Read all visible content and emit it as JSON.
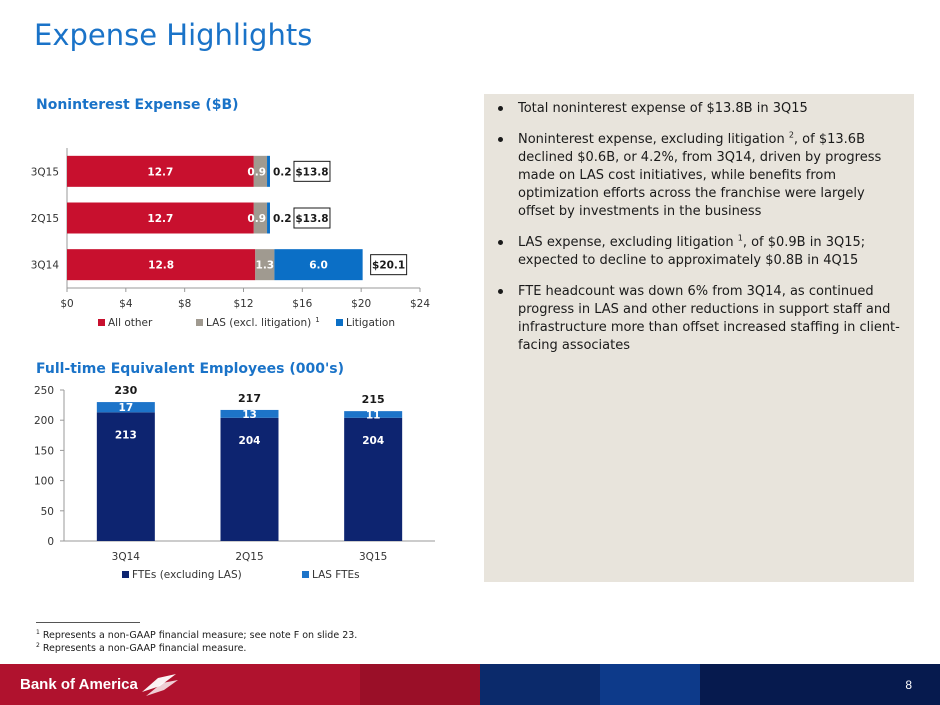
{
  "page_title": "Expense Highlights",
  "page_number": "8",
  "brand": "Bank of America",
  "colors": {
    "accent_blue": "#1a73c8",
    "red": "#c8102e",
    "gray": "#a09a90",
    "blue": "#0b6fc6",
    "navy": "#0d2470",
    "lightblue": "#1d74c9"
  },
  "chart_data": [
    {
      "type": "bar",
      "orientation": "horizontal",
      "stacked": true,
      "title": "Noninterest Expense ($B)",
      "categories": [
        "3Q14",
        "2Q15",
        "3Q15"
      ],
      "series": [
        {
          "name": "All other",
          "values": [
            12.8,
            12.7,
            12.7
          ],
          "labels": [
            "12.8",
            "12.7",
            "12.7"
          ],
          "color": "#c8102e"
        },
        {
          "name": "LAS (excl. litigation)",
          "name_sup": "1",
          "values": [
            1.3,
            0.9,
            0.9
          ],
          "labels": [
            "1.3",
            "0.9",
            "0.9"
          ],
          "color": "#a09a90"
        },
        {
          "name": "Litigation",
          "values": [
            6.0,
            0.2,
            0.2
          ],
          "labels": [
            "6.0",
            "0.2",
            "0.2"
          ],
          "color": "#0b6fc6"
        }
      ],
      "totals": [
        "$20.1",
        "$13.8",
        "$13.8"
      ],
      "xlim": [
        0,
        24
      ],
      "xticks": [
        0,
        4,
        8,
        12,
        16,
        20,
        24
      ],
      "xtick_labels": [
        "$0",
        "$4",
        "$8",
        "$12",
        "$16",
        "$20",
        "$24"
      ],
      "legend": "bottom"
    },
    {
      "type": "bar",
      "stacked": true,
      "title": "Full-time Equivalent Employees (000's)",
      "categories": [
        "3Q14",
        "2Q15",
        "3Q15"
      ],
      "series": [
        {
          "name": "FTEs (excluding LAS)",
          "values": [
            213,
            204,
            204
          ],
          "labels": [
            "213",
            "204",
            "204"
          ],
          "color": "#0d2470"
        },
        {
          "name": "LAS FTEs",
          "values": [
            17,
            13,
            11
          ],
          "labels": [
            "17",
            "13",
            "11"
          ],
          "color": "#1d74c9"
        }
      ],
      "totals": [
        "230",
        "217",
        "215"
      ],
      "ylim": [
        0,
        250
      ],
      "yticks": [
        0,
        50,
        100,
        150,
        200,
        250
      ],
      "ytick_labels": [
        "0",
        "50",
        "100",
        "150",
        "200",
        "250"
      ],
      "legend": "bottom"
    }
  ],
  "bullets": [
    {
      "text": "Total noninterest expense of $13.8B in 3Q15"
    },
    {
      "pre": "Noninterest expense, excluding litigation ",
      "sup": "2",
      "post": ", of $13.6B declined $0.6B, or 4.2%, from 3Q14, driven by progress made on LAS cost initiatives, while benefits from optimization efforts across the franchise were largely offset by investments in the business"
    },
    {
      "pre": "LAS expense, excluding litigation ",
      "sup": "1",
      "post": ", of $0.9B in 3Q15; expected to decline to approximately $0.8B in 4Q15"
    },
    {
      "text": "FTE headcount was down 6% from 3Q14, as continued progress in LAS and other reductions in support staff and infrastructure more than offset increased staffing in client-facing associates"
    }
  ],
  "footnotes": [
    {
      "sup": "1",
      "text": "Represents a non-GAAP financial measure; see note F on slide 23."
    },
    {
      "sup": "2",
      "text": "Represents a non-GAAP financial measure."
    }
  ]
}
